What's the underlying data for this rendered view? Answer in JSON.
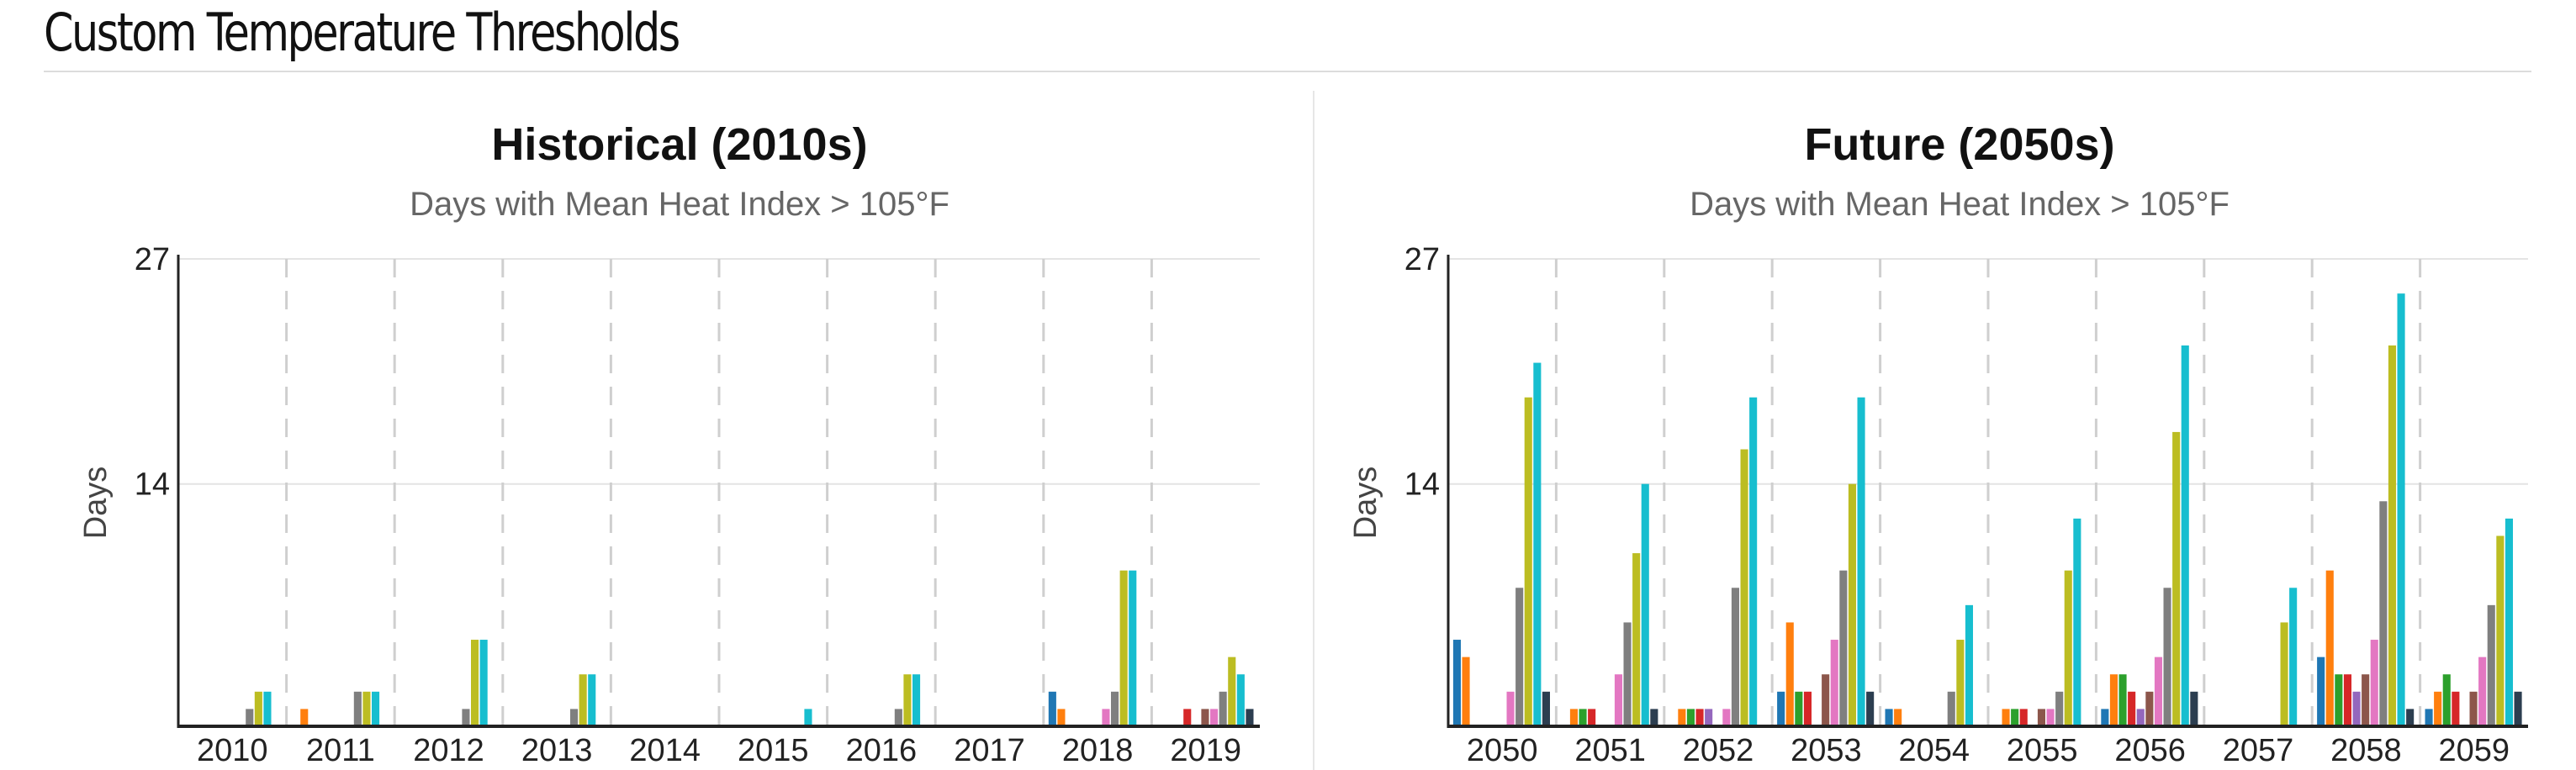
{
  "header": {
    "title": "Custom Temperature Thresholds"
  },
  "colors": [
    "#1f77b4",
    "#ff7f0e",
    "#2ca02c",
    "#d62728",
    "#9467bd",
    "#8c564b",
    "#e377c2",
    "#7f7f7f",
    "#bcbd22",
    "#17becf",
    "#2c3e50"
  ],
  "chart_data": [
    {
      "type": "bar",
      "title": "Historical (2010s)",
      "subtitle": "Days with Mean Heat Index > 105°F",
      "ylabel": "Days",
      "yticks": [
        14,
        27
      ],
      "ylim": [
        0,
        27
      ],
      "grid": "vertical dashed separators between years",
      "categories": [
        "2010",
        "2011",
        "2012",
        "2013",
        "2014",
        "2015",
        "2016",
        "2017",
        "2018",
        "2019"
      ],
      "series_values": [
        [
          0,
          0,
          0,
          0,
          0,
          0,
          0,
          1,
          2,
          2,
          0
        ],
        [
          0,
          1,
          0,
          0,
          0,
          0,
          0,
          2,
          2,
          2,
          0
        ],
        [
          0,
          0,
          0,
          0,
          0,
          0,
          0,
          1,
          5,
          5,
          0
        ],
        [
          0,
          0,
          0,
          0,
          0,
          0,
          0,
          1,
          3,
          3,
          0
        ],
        [
          0,
          0,
          0,
          0,
          0,
          0,
          0,
          0,
          0,
          0,
          0
        ],
        [
          0,
          0,
          0,
          0,
          0,
          0,
          0,
          0,
          0,
          1,
          0
        ],
        [
          0,
          0,
          0,
          0,
          0,
          0,
          0,
          1,
          3,
          3,
          0
        ],
        [
          0,
          0,
          0,
          0,
          0,
          0,
          0,
          0,
          0,
          0,
          0
        ],
        [
          2,
          1,
          0,
          0,
          0,
          0,
          1,
          2,
          9,
          9,
          0
        ],
        [
          0,
          0,
          0,
          1,
          0,
          1,
          1,
          2,
          4,
          3,
          1
        ]
      ]
    },
    {
      "type": "bar",
      "title": "Future (2050s)",
      "subtitle": "Days with Mean Heat Index > 105°F",
      "ylabel": "Days",
      "yticks": [
        14,
        27
      ],
      "ylim": [
        0,
        27
      ],
      "grid": "vertical dashed separators between years",
      "categories": [
        "2050",
        "2051",
        "2052",
        "2053",
        "2054",
        "2055",
        "2056",
        "2057",
        "2058",
        "2059"
      ],
      "series_values": [
        [
          5,
          4,
          0,
          0,
          0,
          0,
          2,
          8,
          19,
          21,
          2
        ],
        [
          0,
          1,
          1,
          1,
          0,
          0,
          3,
          6,
          10,
          14,
          1
        ],
        [
          0,
          1,
          1,
          1,
          1,
          0,
          1,
          8,
          16,
          19,
          0
        ],
        [
          2,
          6,
          2,
          2,
          0,
          3,
          5,
          9,
          14,
          19,
          2
        ],
        [
          1,
          1,
          0,
          0,
          0,
          0,
          0,
          2,
          5,
          7,
          0
        ],
        [
          0,
          1,
          1,
          1,
          0,
          1,
          1,
          2,
          9,
          12,
          0
        ],
        [
          1,
          3,
          3,
          2,
          1,
          2,
          4,
          8,
          17,
          22,
          2
        ],
        [
          0,
          0,
          0,
          0,
          0,
          0,
          0,
          0,
          6,
          8,
          0
        ],
        [
          4,
          9,
          3,
          3,
          2,
          3,
          5,
          13,
          22,
          25,
          1
        ],
        [
          1,
          2,
          3,
          2,
          0,
          2,
          4,
          7,
          11,
          12,
          2
        ]
      ]
    }
  ]
}
